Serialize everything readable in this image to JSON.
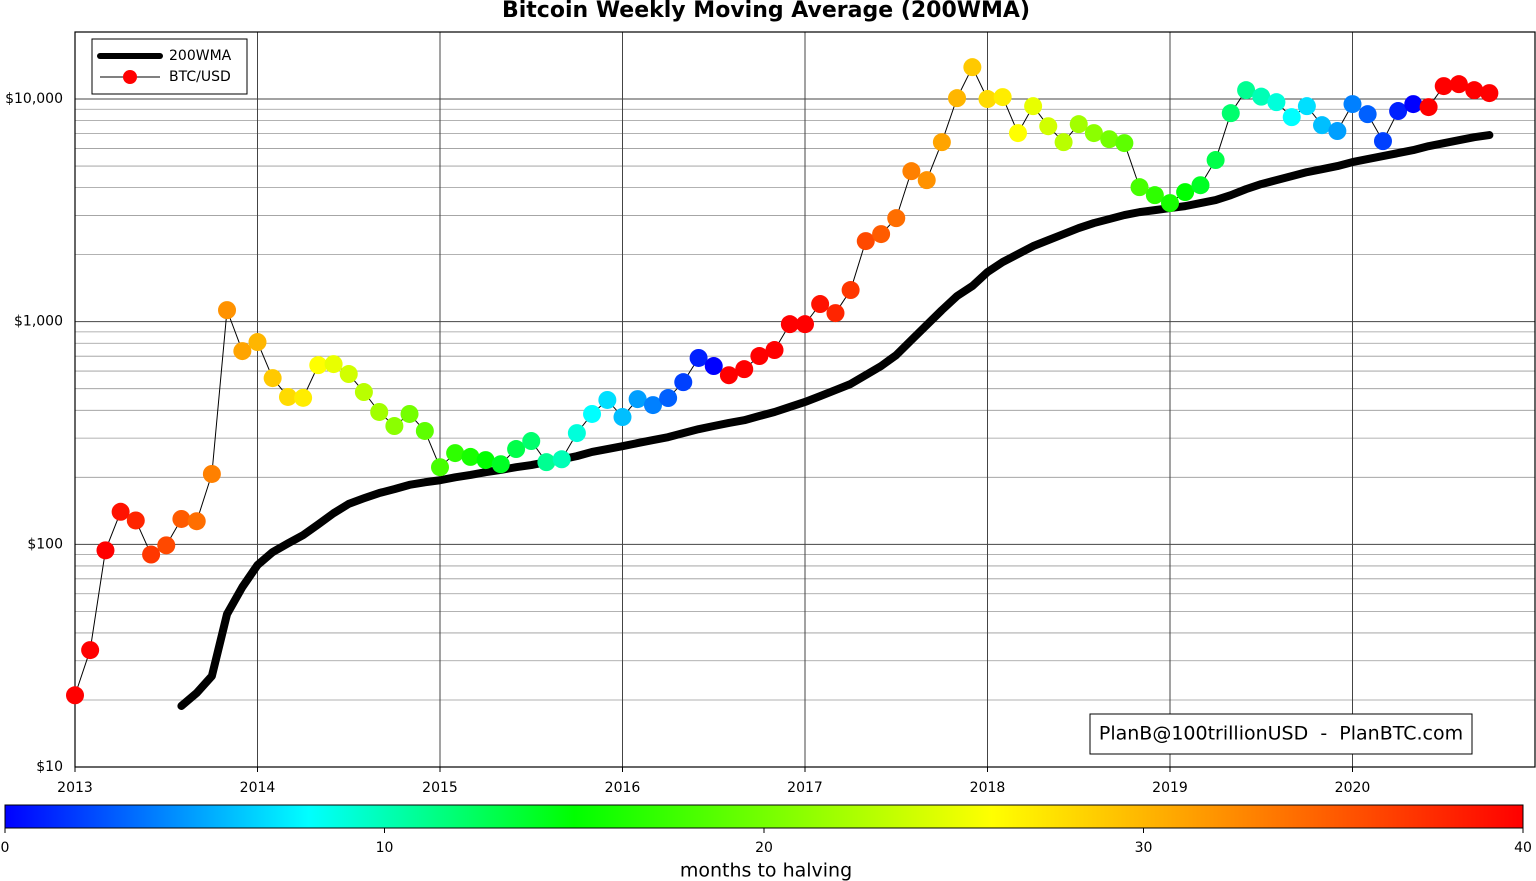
{
  "chart_data": {
    "type": "line",
    "title": "Bitcoin Weekly Moving Average (200WMA)",
    "yscale": "log",
    "grid": true,
    "legend": "upper left",
    "annotation": "PlanB@100trillionUSD  -  PlanBTC.com",
    "xlim": [
      2013,
      2021
    ],
    "xticks": [
      2013,
      2014,
      2015,
      2016,
      2017,
      2018,
      2019,
      2020
    ],
    "ylim": [
      10,
      20000
    ],
    "yticks": [
      {
        "value": 10,
        "label": "$10"
      },
      {
        "value": 100,
        "label": "$100"
      },
      {
        "value": 1000,
        "label": "$1,000"
      },
      {
        "value": 10000,
        "label": "$10,000"
      }
    ],
    "yminorticks": [
      20,
      30,
      40,
      50,
      60,
      70,
      80,
      90,
      200,
      300,
      400,
      500,
      600,
      700,
      800,
      900,
      2000,
      3000,
      4000,
      5000,
      6000,
      7000,
      8000,
      9000
    ],
    "x": [
      2013,
      2013.083,
      2013.167,
      2013.25,
      2013.333,
      2013.417,
      2013.5,
      2013.583,
      2013.667,
      2013.75,
      2013.833,
      2013.917,
      2014,
      2014.083,
      2014.167,
      2014.25,
      2014.333,
      2014.417,
      2014.5,
      2014.583,
      2014.667,
      2014.75,
      2014.833,
      2014.917,
      2015,
      2015.083,
      2015.167,
      2015.25,
      2015.333,
      2015.417,
      2015.5,
      2015.583,
      2015.667,
      2015.75,
      2015.833,
      2015.917,
      2016,
      2016.083,
      2016.167,
      2016.25,
      2016.333,
      2016.417,
      2016.5,
      2016.583,
      2016.667,
      2016.75,
      2016.833,
      2016.917,
      2017,
      2017.083,
      2017.167,
      2017.25,
      2017.333,
      2017.417,
      2017.5,
      2017.583,
      2017.667,
      2017.75,
      2017.833,
      2017.917,
      2018,
      2018.083,
      2018.167,
      2018.25,
      2018.333,
      2018.417,
      2018.5,
      2018.583,
      2018.667,
      2018.75,
      2018.833,
      2018.917,
      2019,
      2019.083,
      2019.167,
      2019.25,
      2019.333,
      2019.417,
      2019.5,
      2019.583,
      2019.667,
      2019.75,
      2019.833,
      2019.917,
      2020,
      2020.083,
      2020.167,
      2020.25,
      2020.333,
      2020.417,
      2020.5,
      2020.583,
      2020.667,
      2020.75
    ],
    "series": [
      {
        "name": "200WMA",
        "color": "#000000",
        "values": [
          null,
          null,
          null,
          null,
          null,
          null,
          null,
          18.8,
          21.5,
          25.6,
          48.6,
          64.3,
          80.7,
          92.3,
          101,
          110,
          123,
          138,
          152,
          161,
          170,
          177,
          185,
          190,
          194,
          200,
          205,
          211,
          216,
          222,
          227,
          234,
          241,
          249,
          260,
          268,
          276,
          285,
          294,
          303,
          316,
          329,
          340,
          351,
          361,
          377,
          393,
          414,
          436,
          463,
          493,
          525,
          576,
          632,
          708,
          827,
          966,
          1127,
          1303,
          1446,
          1670,
          1852,
          2012,
          2184,
          2324,
          2474,
          2633,
          2773,
          2890,
          3012,
          3105,
          3170,
          3237,
          3304,
          3410,
          3516,
          3700,
          3939,
          4150,
          4321,
          4504,
          4695,
          4841,
          4998,
          5210,
          5373,
          5542,
          5717,
          5897,
          6142,
          6334,
          6535,
          6740,
          6890
        ]
      },
      {
        "name": "BTC/USD",
        "color": "#ff0000",
        "values": [
          21,
          33.5,
          94,
          140,
          128,
          90,
          99,
          130,
          127,
          207,
          1127,
          738,
          810,
          558,
          459,
          455,
          638,
          645,
          582,
          483,
          393,
          340,
          385,
          323,
          222,
          257,
          247,
          239,
          229,
          268,
          291,
          234,
          241,
          316,
          385,
          445,
          373,
          449,
          422,
          454,
          535,
          687,
          632,
          575,
          612,
          701,
          746,
          975,
          975,
          1200,
          1093,
          1387,
          2301,
          2474,
          2918,
          4744,
          4321,
          6402,
          10093,
          13900,
          10000,
          10200,
          7030,
          9290,
          7550,
          6400,
          7710,
          7030,
          6600,
          6340,
          4020,
          3700,
          3410,
          3820,
          4100,
          5320,
          8640,
          10960,
          10250,
          9680,
          8290,
          9290,
          7630,
          7180,
          9490,
          8550,
          6470,
          8830,
          9490,
          9200,
          11430,
          11660,
          10960,
          10630
        ],
        "colors": [
          "#ff0000",
          "#ff0000",
          "#ff0000",
          "#ff1200",
          "#ff2500",
          "#ff3700",
          "#ff4900",
          "#ff5b00",
          "#ff6e00",
          "#ff8000",
          "#ff9200",
          "#ffa400",
          "#ffb600",
          "#ffc900",
          "#ffdb00",
          "#ffed00",
          "#ffff00",
          "#e8ff00",
          "#d1ff00",
          "#b9ff00",
          "#a2ff00",
          "#8bff00",
          "#74ff00",
          "#5dff00",
          "#46ff00",
          "#2eff00",
          "#17ff00",
          "#00ff00",
          "#00ff24",
          "#00ff49",
          "#00ff6d",
          "#00ff92",
          "#00ffb6",
          "#00ffdb",
          "#00ffff",
          "#00dfff",
          "#00bfff",
          "#009fff",
          "#0080ff",
          "#0060ff",
          "#0040ff",
          "#0020ff",
          "#0000ff",
          "#ff0000",
          "#ff0000",
          "#ff0000",
          "#ff0000",
          "#ff0000",
          "#ff0000",
          "#ff1200",
          "#ff2500",
          "#ff3700",
          "#ff4900",
          "#ff5b00",
          "#ff6e00",
          "#ff8000",
          "#ff9200",
          "#ffa400",
          "#ffb600",
          "#ffc900",
          "#ffdb00",
          "#ffed00",
          "#ffff00",
          "#e8ff00",
          "#d1ff00",
          "#b9ff00",
          "#a2ff00",
          "#8bff00",
          "#74ff00",
          "#5dff00",
          "#46ff00",
          "#2eff00",
          "#17ff00",
          "#00ff00",
          "#00ff24",
          "#00ff49",
          "#00ff6d",
          "#00ff92",
          "#00ffb6",
          "#00ffdb",
          "#00ffff",
          "#00dfff",
          "#00bfff",
          "#009fff",
          "#0080ff",
          "#0060ff",
          "#0040ff",
          "#0020ff",
          "#0000ff",
          "#ff0000",
          "#ff0000",
          "#ff0000",
          "#ff0000",
          "#ff0000"
        ]
      }
    ],
    "colorbar": {
      "label": "months to halving",
      "lim": [
        0,
        40
      ],
      "ticks": [
        0,
        10,
        20,
        30,
        40
      ],
      "colorscale": [
        [
          0,
          "#0000ff"
        ],
        [
          8,
          "#00ffff"
        ],
        [
          15,
          "#00ff00"
        ],
        [
          26,
          "#ffff00"
        ],
        [
          33,
          "#ff8000"
        ],
        [
          40,
          "#ff0000"
        ]
      ]
    }
  }
}
